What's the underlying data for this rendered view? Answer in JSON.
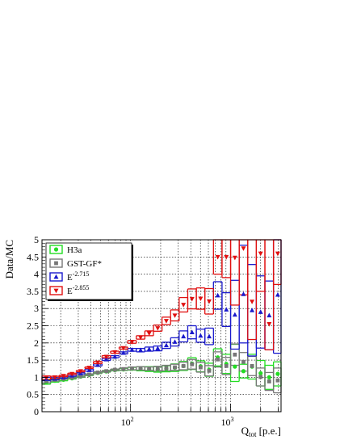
{
  "chart_data": {
    "type": "scatter",
    "title": "",
    "xlabel": "Q",
    "xlabel_sub": "tot",
    "xlabel_unit": "[p.e.]",
    "ylabel": "Data/MC",
    "x_scale": "log",
    "xlim": [
      13,
      3200
    ],
    "ylim": [
      0,
      5
    ],
    "grid": true,
    "legend_position": "top-left",
    "y_ticks": [
      0,
      0.5,
      1,
      1.5,
      2,
      2.5,
      3,
      3.5,
      4,
      4.5,
      5
    ],
    "y_tick_labels": [
      "0",
      "0.5",
      "1",
      "1.5",
      "2",
      "2.5",
      "3",
      "3.5",
      "4",
      "4.5",
      "5"
    ],
    "x_ticks": [
      100,
      1000
    ],
    "x_tick_labels": [
      {
        "base": "10",
        "exp": "2"
      },
      {
        "base": "10",
        "exp": "3"
      }
    ],
    "bin_edges": [
      13,
      15.84,
      19.3,
      23.51,
      28.64,
      34.89,
      42.51,
      51.79,
      63.1,
      76.87,
      93.65,
      114.1,
      139.0,
      169.36,
      206.33,
      251.37,
      306.25,
      373.1,
      454.56,
      553.8,
      674.7,
      821.98,
      1001.42,
      1220.03,
      1486.37,
      1810.84,
      2206.15,
      2687.74,
      3274.47
    ],
    "series": [
      {
        "name": "H3a",
        "color": "#22dd22",
        "marker": "circle",
        "values": [
          0.86,
          0.9,
          0.93,
          0.97,
          1.02,
          1.07,
          1.13,
          1.17,
          1.21,
          1.23,
          1.25,
          1.25,
          1.24,
          1.23,
          1.25,
          1.28,
          1.33,
          1.4,
          1.32,
          1.22,
          1.58,
          1.39,
          1.31,
          1.18,
          1.31,
          1.12,
          1.0,
          1.1
        ],
        "band_low": [
          0.8,
          0.86,
          0.9,
          0.95,
          1.0,
          1.05,
          1.11,
          1.15,
          1.19,
          1.2,
          1.21,
          1.19,
          1.17,
          1.15,
          1.16,
          1.17,
          1.2,
          1.23,
          1.16,
          1.03,
          1.33,
          1.11,
          0.88,
          0.98,
          0.95,
          0.75,
          0.65,
          0.75
        ],
        "band_high": [
          0.92,
          0.94,
          0.96,
          0.99,
          1.04,
          1.09,
          1.15,
          1.19,
          1.23,
          1.26,
          1.29,
          1.31,
          1.31,
          1.31,
          1.34,
          1.39,
          1.46,
          1.57,
          1.48,
          1.41,
          1.83,
          1.67,
          1.96,
          1.38,
          1.67,
          1.49,
          1.35,
          1.45
        ]
      },
      {
        "name": "GST-GF*",
        "color": "#777777",
        "marker": "square",
        "values": [
          0.89,
          0.93,
          0.96,
          0.99,
          1.03,
          1.08,
          1.14,
          1.18,
          1.22,
          1.24,
          1.26,
          1.26,
          1.25,
          1.25,
          1.27,
          1.29,
          1.33,
          1.38,
          1.29,
          1.19,
          1.52,
          1.33,
          1.66,
          1.45,
          1.33,
          1.01,
          0.88,
          0.91
        ],
        "band_low": [
          0.84,
          0.89,
          0.94,
          0.97,
          1.01,
          1.06,
          1.12,
          1.16,
          1.2,
          1.21,
          1.22,
          1.21,
          1.2,
          1.18,
          1.19,
          1.2,
          1.22,
          1.24,
          1.15,
          1.04,
          1.3,
          1.08,
          1.35,
          1.18,
          1.05,
          0.75,
          0.62,
          0.55
        ],
        "band_high": [
          0.94,
          0.97,
          0.98,
          1.01,
          1.05,
          1.1,
          1.16,
          1.2,
          1.24,
          1.27,
          1.3,
          1.31,
          1.3,
          1.32,
          1.35,
          1.38,
          1.44,
          1.52,
          1.43,
          1.34,
          1.74,
          1.58,
          1.97,
          1.72,
          1.61,
          1.27,
          1.14,
          1.27
        ]
      },
      {
        "name": "E",
        "name_sup": "-2.715",
        "color": "#1a1acc",
        "marker": "triangle-up",
        "values": [
          0.95,
          0.96,
          1.0,
          1.05,
          1.12,
          1.21,
          1.36,
          1.52,
          1.6,
          1.71,
          1.8,
          1.79,
          1.82,
          1.84,
          1.93,
          2.03,
          2.19,
          2.31,
          2.21,
          2.19,
          3.38,
          2.97,
          2.82,
          3.42,
          2.95,
          2.9,
          2.8,
          3.4
        ],
        "band_low": [
          0.9,
          0.93,
          0.98,
          1.03,
          1.1,
          1.18,
          1.33,
          1.49,
          1.57,
          1.68,
          1.76,
          1.74,
          1.76,
          1.77,
          1.84,
          1.91,
          2.03,
          2.12,
          2.02,
          1.95,
          2.98,
          2.48,
          1.82,
          2.0,
          1.62,
          1.85,
          1.8,
          1.7
        ],
        "band_high": [
          1.0,
          0.99,
          1.02,
          1.07,
          1.14,
          1.24,
          1.39,
          1.55,
          1.63,
          1.74,
          1.84,
          1.84,
          1.88,
          1.91,
          2.02,
          2.15,
          2.35,
          2.5,
          2.4,
          2.43,
          3.78,
          3.46,
          3.82,
          4.84,
          4.28,
          3.95,
          3.8,
          5.0
        ]
      },
      {
        "name": "E",
        "name_sup": "-2.855",
        "color": "#e01010",
        "marker": "triangle-down",
        "values": [
          0.99,
          1.0,
          1.04,
          1.1,
          1.18,
          1.28,
          1.43,
          1.6,
          1.73,
          1.85,
          2.03,
          2.16,
          2.28,
          2.43,
          2.64,
          2.8,
          3.11,
          3.28,
          3.29,
          3.21,
          4.5,
          4.5,
          4.48,
          4.75,
          3.2,
          4.6,
          2.55,
          4.6
        ],
        "band_low": [
          0.94,
          0.97,
          1.02,
          1.08,
          1.16,
          1.26,
          1.4,
          1.57,
          1.7,
          1.82,
          1.99,
          2.11,
          2.21,
          2.34,
          2.53,
          2.64,
          2.9,
          2.99,
          2.98,
          2.84,
          4.0,
          3.9,
          3.1,
          3.4,
          2.1,
          3.5,
          1.8,
          3.7
        ],
        "band_high": [
          1.04,
          1.03,
          1.06,
          1.12,
          1.2,
          1.3,
          1.46,
          1.63,
          1.76,
          1.88,
          2.07,
          2.21,
          2.35,
          2.52,
          2.75,
          2.96,
          3.32,
          3.57,
          3.6,
          3.58,
          5.0,
          5.0,
          5.0,
          5.0,
          5.0,
          5.0,
          5.0,
          5.0
        ]
      }
    ]
  }
}
